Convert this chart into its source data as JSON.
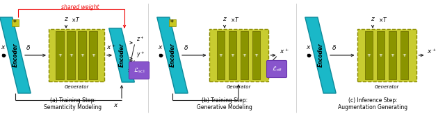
{
  "bg_color": "#ffffff",
  "encoder_color": "#1ab8c8",
  "encoder_edge_color": "#0d8a9a",
  "generator_bg": "#c8cc30",
  "generator_bar_color": "#8a9400",
  "generator_border_color": "#888800",
  "loss_color": "#8855cc",
  "loss_edge_color": "#6633aa",
  "arrow_color": "#222222",
  "red_color": "#ee0000",
  "gray_color": "#888888",
  "sub_titles": [
    "(a) Training Step:\nSemanticity Modeling",
    "(b) Training Step:\nGenerative Modeling",
    "(c) Inference Step:\nAugmentation Generating"
  ],
  "figsize": [
    6.4,
    1.68
  ],
  "dpi": 100
}
